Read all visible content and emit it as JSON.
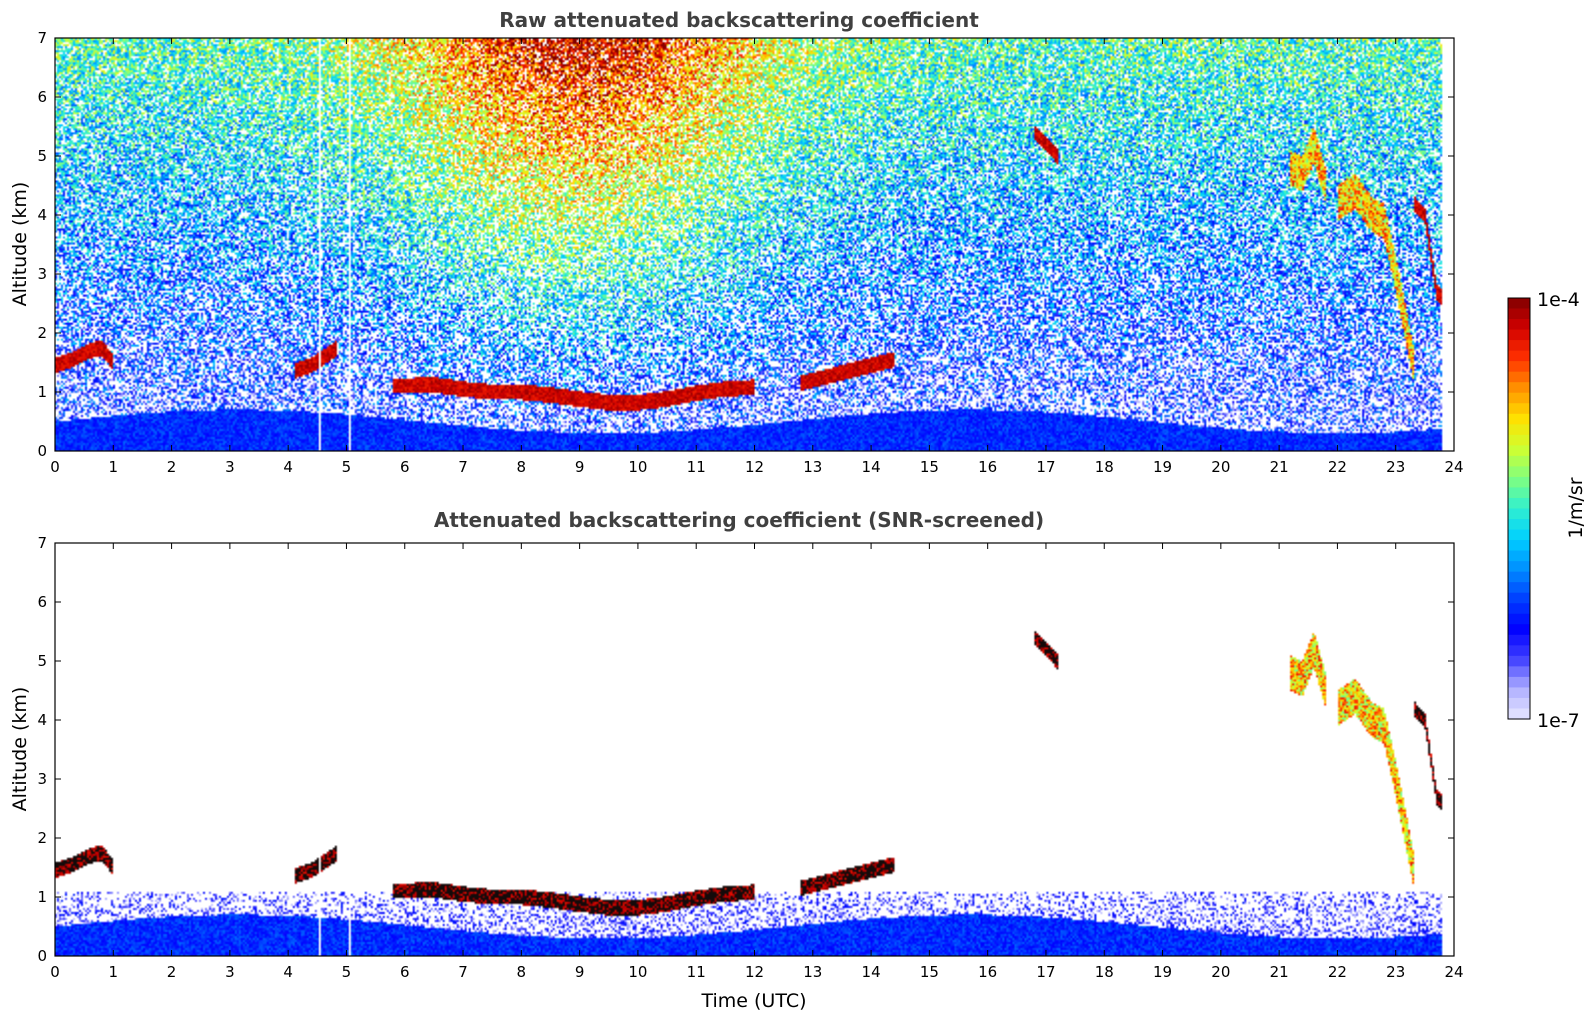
{
  "chart_data": [
    {
      "type": "heatmap",
      "title": "Raw attenuated backscattering coefficient",
      "xlabel": "",
      "ylabel": "Altitude (km)",
      "xlim": [
        0,
        24
      ],
      "ylim": [
        0,
        7
      ],
      "xticks": [
        "0",
        "1",
        "2",
        "3",
        "4",
        "5",
        "6",
        "7",
        "8",
        "9",
        "10",
        "11",
        "12",
        "13",
        "14",
        "15",
        "16",
        "17",
        "18",
        "19",
        "20",
        "21",
        "22",
        "23",
        "24"
      ],
      "yticks": [
        "0",
        "1",
        "2",
        "3",
        "4",
        "5",
        "6",
        "7"
      ],
      "screened": false,
      "data_end_time": 23.8,
      "gaps": [
        4.55,
        5.05
      ],
      "layers": [
        {
          "name": "boundary-layer cloud segment 1",
          "points": [
            [
              0.0,
              1.45
            ],
            [
              0.3,
              1.55
            ],
            [
              0.6,
              1.7
            ],
            [
              0.8,
              1.75
            ],
            [
              1.0,
              1.5
            ]
          ],
          "level": "high"
        },
        {
          "name": "boundary-layer cloud segment 2",
          "points": [
            [
              4.1,
              1.35
            ],
            [
              4.4,
              1.45
            ],
            [
              4.7,
              1.65
            ],
            [
              4.85,
              1.75
            ]
          ],
          "level": "high"
        },
        {
          "name": "stratocumulus deck",
          "points": [
            [
              5.8,
              1.1
            ],
            [
              6.5,
              1.12
            ],
            [
              7.0,
              1.05
            ],
            [
              7.5,
              1.0
            ],
            [
              8.0,
              1.0
            ],
            [
              8.5,
              0.95
            ],
            [
              9.0,
              0.88
            ],
            [
              9.5,
              0.82
            ],
            [
              10.0,
              0.82
            ],
            [
              10.5,
              0.88
            ],
            [
              11.0,
              0.98
            ],
            [
              11.5,
              1.05
            ],
            [
              12.0,
              1.08
            ]
          ],
          "level": "high"
        },
        {
          "name": "broken cloud",
          "points": [
            [
              12.8,
              1.15
            ],
            [
              13.2,
              1.25
            ],
            [
              13.6,
              1.35
            ],
            [
              14.0,
              1.45
            ],
            [
              14.4,
              1.55
            ]
          ],
          "level": "high"
        },
        {
          "name": "mid-level cloud",
          "points": [
            [
              16.8,
              5.4
            ],
            [
              17.0,
              5.2
            ],
            [
              17.2,
              5.0
            ]
          ],
          "level": "high"
        },
        {
          "name": "high cloud A",
          "points": [
            [
              21.2,
              4.8
            ],
            [
              21.4,
              4.7
            ],
            [
              21.6,
              5.2
            ],
            [
              21.8,
              4.5
            ]
          ],
          "level": "mid"
        },
        {
          "name": "high cloud B",
          "points": [
            [
              22.0,
              4.2
            ],
            [
              22.3,
              4.4
            ],
            [
              22.6,
              4.0
            ],
            [
              22.8,
              3.9
            ],
            [
              23.0,
              3.0
            ],
            [
              23.2,
              2.0
            ],
            [
              23.3,
              1.5
            ]
          ],
          "level": "mid"
        },
        {
          "name": "high cloud C",
          "points": [
            [
              23.3,
              4.2
            ],
            [
              23.5,
              4.0
            ],
            [
              23.7,
              2.7
            ],
            [
              23.8,
              2.6
            ]
          ],
          "level": "high"
        }
      ]
    },
    {
      "type": "heatmap",
      "title": "Attenuated backscattering coefficient (SNR-screened)",
      "xlabel": "Time (UTC)",
      "ylabel": "Altitude (km)",
      "xlim": [
        0,
        24
      ],
      "ylim": [
        0,
        7
      ],
      "xticks": [
        "0",
        "1",
        "2",
        "3",
        "4",
        "5",
        "6",
        "7",
        "8",
        "9",
        "10",
        "11",
        "12",
        "13",
        "14",
        "15",
        "16",
        "17",
        "18",
        "19",
        "20",
        "21",
        "22",
        "23",
        "24"
      ],
      "yticks": [
        "0",
        "1",
        "2",
        "3",
        "4",
        "5",
        "6",
        "7"
      ],
      "screened": true,
      "data_end_time": 23.8,
      "gaps": [
        4.55,
        5.05
      ]
    }
  ],
  "colorbar": {
    "min_label": "1e-7",
    "max_label": "1e-4",
    "label": "1/m/sr",
    "colors": [
      "#e8e8ff",
      "#b0b0ff",
      "#4040ff",
      "#0000ff",
      "#0040ff",
      "#0090ff",
      "#00d0ff",
      "#30f0d0",
      "#80ff80",
      "#d0ff30",
      "#ffe000",
      "#ff9000",
      "#ff3000",
      "#d00000",
      "#800000"
    ]
  }
}
